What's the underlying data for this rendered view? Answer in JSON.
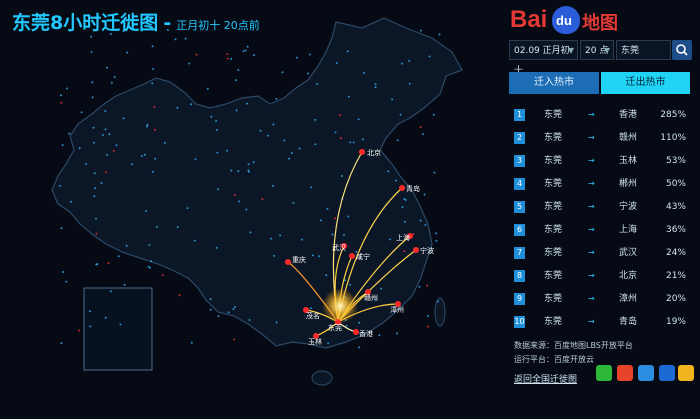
{
  "header": {
    "title": "东莞8小时迁徙图",
    "dash": "-",
    "subtitle": "正月初十 20点前"
  },
  "logo": {
    "bai": "Bai",
    "du": "du",
    "ditu": "地图"
  },
  "controls": {
    "date": "02.09 正月初十",
    "hour": "20 点",
    "city": "东莞"
  },
  "tabs": {
    "in": "迁入热市",
    "out": "迁出热市",
    "active": "out"
  },
  "ranking": [
    {
      "rank": "1",
      "from": "东莞",
      "arrow": "→",
      "to": "香港",
      "pct": "285%"
    },
    {
      "rank": "2",
      "from": "东莞",
      "arrow": "→",
      "to": "赣州",
      "pct": "110%"
    },
    {
      "rank": "3",
      "from": "东莞",
      "arrow": "→",
      "to": "玉林",
      "pct": "53%"
    },
    {
      "rank": "4",
      "from": "东莞",
      "arrow": "→",
      "to": "郴州",
      "pct": "50%"
    },
    {
      "rank": "5",
      "from": "东莞",
      "arrow": "→",
      "to": "宁波",
      "pct": "43%"
    },
    {
      "rank": "6",
      "from": "东莞",
      "arrow": "→",
      "to": "上海",
      "pct": "36%"
    },
    {
      "rank": "7",
      "from": "东莞",
      "arrow": "→",
      "to": "武汉",
      "pct": "24%"
    },
    {
      "rank": "8",
      "from": "东莞",
      "arrow": "→",
      "to": "北京",
      "pct": "21%"
    },
    {
      "rank": "9",
      "from": "东莞",
      "arrow": "→",
      "to": "漳州",
      "pct": "20%"
    },
    {
      "rank": "10",
      "from": "东莞",
      "arrow": "→",
      "to": "青岛",
      "pct": "19%"
    }
  ],
  "footer": {
    "source": "数据来源：百度地图LBS开放平台",
    "platform": "运行平台：百度开放云",
    "back_link": "返回全国迁徙图"
  },
  "map_labels": {
    "beijing": "北京",
    "qingdao": "青岛",
    "shanghai": "上海",
    "ningbo": "宁波",
    "wuhan": "武汉",
    "chongqing": "重庆",
    "xianning": "咸宁",
    "ganzhou": "赣州",
    "zhangzhou": "漳州",
    "maoming": "茂名",
    "dongguan": "东莞",
    "xianggang": "香港",
    "yulin": "玉林"
  },
  "colors": {
    "accent": "#22c8ff",
    "tab_active": "#1fd4f4",
    "tab_inactive": "#1c6db5",
    "city_dot": "#ff2a2a",
    "flow": "#ffd24a"
  }
}
